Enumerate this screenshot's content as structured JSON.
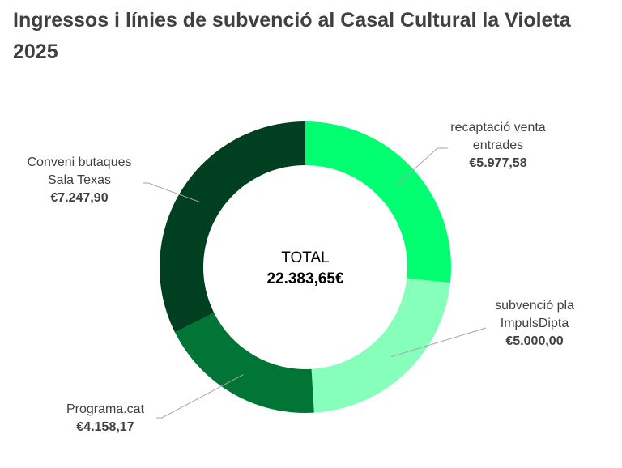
{
  "chart_data": {
    "type": "pie",
    "variant": "donut",
    "title": "Ingressos i línies de subvenció al Casal Cultural la Violeta 2025",
    "center_label": "TOTAL",
    "center_value": "22.383,65€",
    "slices": [
      {
        "label": "recaptació venta entrades",
        "value": 5977.58,
        "value_label": "€5.977,58",
        "color": "#00FF70"
      },
      {
        "label": "subvenció pla ImpulsDipta",
        "value": 5000.0,
        "value_label": "€5.000,00",
        "color": "#86FFBA"
      },
      {
        "label": "Programa.cat",
        "value": 4158.17,
        "value_label": "€4.158,17",
        "color": "#007536"
      },
      {
        "label": "Conveni butaques Sala Texas",
        "value": 7247.9,
        "value_label": "€7.247,90",
        "color": "#003F1F"
      }
    ],
    "legend": "none",
    "label_lines": [
      "recaptació venta",
      "entrades",
      "subvenció pla",
      "ImpulsDipta",
      "Programa.cat",
      "Conveni butaques",
      "Sala Texas"
    ]
  }
}
